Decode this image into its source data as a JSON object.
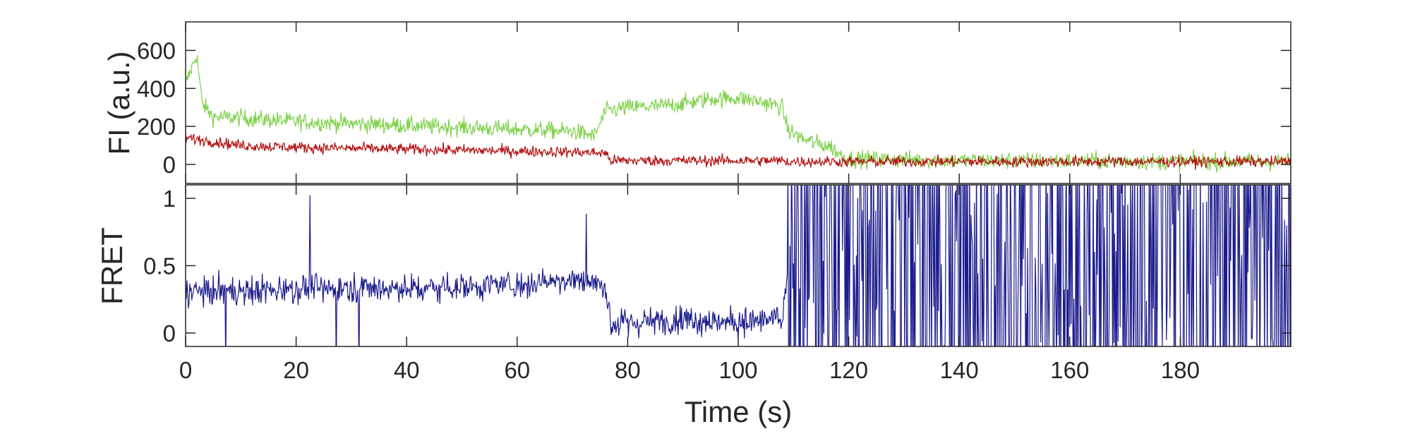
{
  "chart_data": [
    {
      "type": "line",
      "title": "",
      "xlabel": "",
      "ylabel": "FI (a.u.)",
      "xlim": [
        0,
        200
      ],
      "ylim": [
        -100,
        750
      ],
      "yticks": [
        0,
        200,
        400,
        600
      ],
      "grid": false,
      "legend": "none",
      "series": [
        {
          "color": "#7dd148",
          "approx_profile": {
            "x": [
              0,
              2,
              3,
              5,
              10,
              20,
              30,
              40,
              50,
              60,
              70,
              74,
              76,
              80,
              85,
              90,
              95,
              100,
              104,
              107,
              108,
              109,
              112,
              115,
              117,
              118,
              120,
              130,
              140,
              150,
              160,
              170,
              180,
              190,
              200
            ],
            "y": [
              420,
              580,
              320,
              250,
              245,
              225,
              215,
              205,
              195,
              185,
              175,
              150,
              280,
              300,
              305,
              320,
              345,
              350,
              330,
              310,
              300,
              180,
              130,
              105,
              90,
              60,
              30,
              25,
              20,
              20,
              18,
              18,
              15,
              15,
              15
            ]
          },
          "noise_amplitude": 70
        },
        {
          "color": "#b30e0e",
          "approx_profile": {
            "x": [
              0,
              5,
              10,
              20,
              30,
              40,
              50,
              60,
              70,
              76,
              77,
              80,
              90,
              100,
              106,
              108,
              109,
              115,
              120,
              140,
              160,
              180,
              200
            ],
            "y": [
              140,
              120,
              100,
              90,
              85,
              80,
              75,
              70,
              65,
              60,
              20,
              20,
              20,
              20,
              20,
              20,
              15,
              15,
              15,
              15,
              15,
              15,
              15
            ]
          },
          "noise_amplitude": 45
        }
      ]
    },
    {
      "type": "line",
      "title": "",
      "xlabel": "Time (s)",
      "ylabel": "FRET",
      "xlim": [
        0,
        200
      ],
      "ylim": [
        -0.1,
        1.1
      ],
      "yticks": [
        0,
        0.5,
        1
      ],
      "xticks": [
        0,
        20,
        40,
        60,
        80,
        100,
        120,
        140,
        160,
        180
      ],
      "grid": false,
      "legend": "none",
      "series": [
        {
          "color": "#1c1c8c",
          "approx_profile": {
            "x": [
              0,
              10,
              20,
              30,
              40,
              50,
              60,
              70,
              76,
              77,
              80,
              90,
              100,
              108,
              109,
              200
            ],
            "y": [
              0.3,
              0.32,
              0.33,
              0.34,
              0.33,
              0.35,
              0.36,
              0.4,
              0.35,
              0.06,
              0.07,
              0.1,
              0.08,
              0.1,
              0.5,
              0.5
            ]
          },
          "noise_amplitude": 0.18,
          "saturated_after_x": 109
        }
      ]
    }
  ]
}
